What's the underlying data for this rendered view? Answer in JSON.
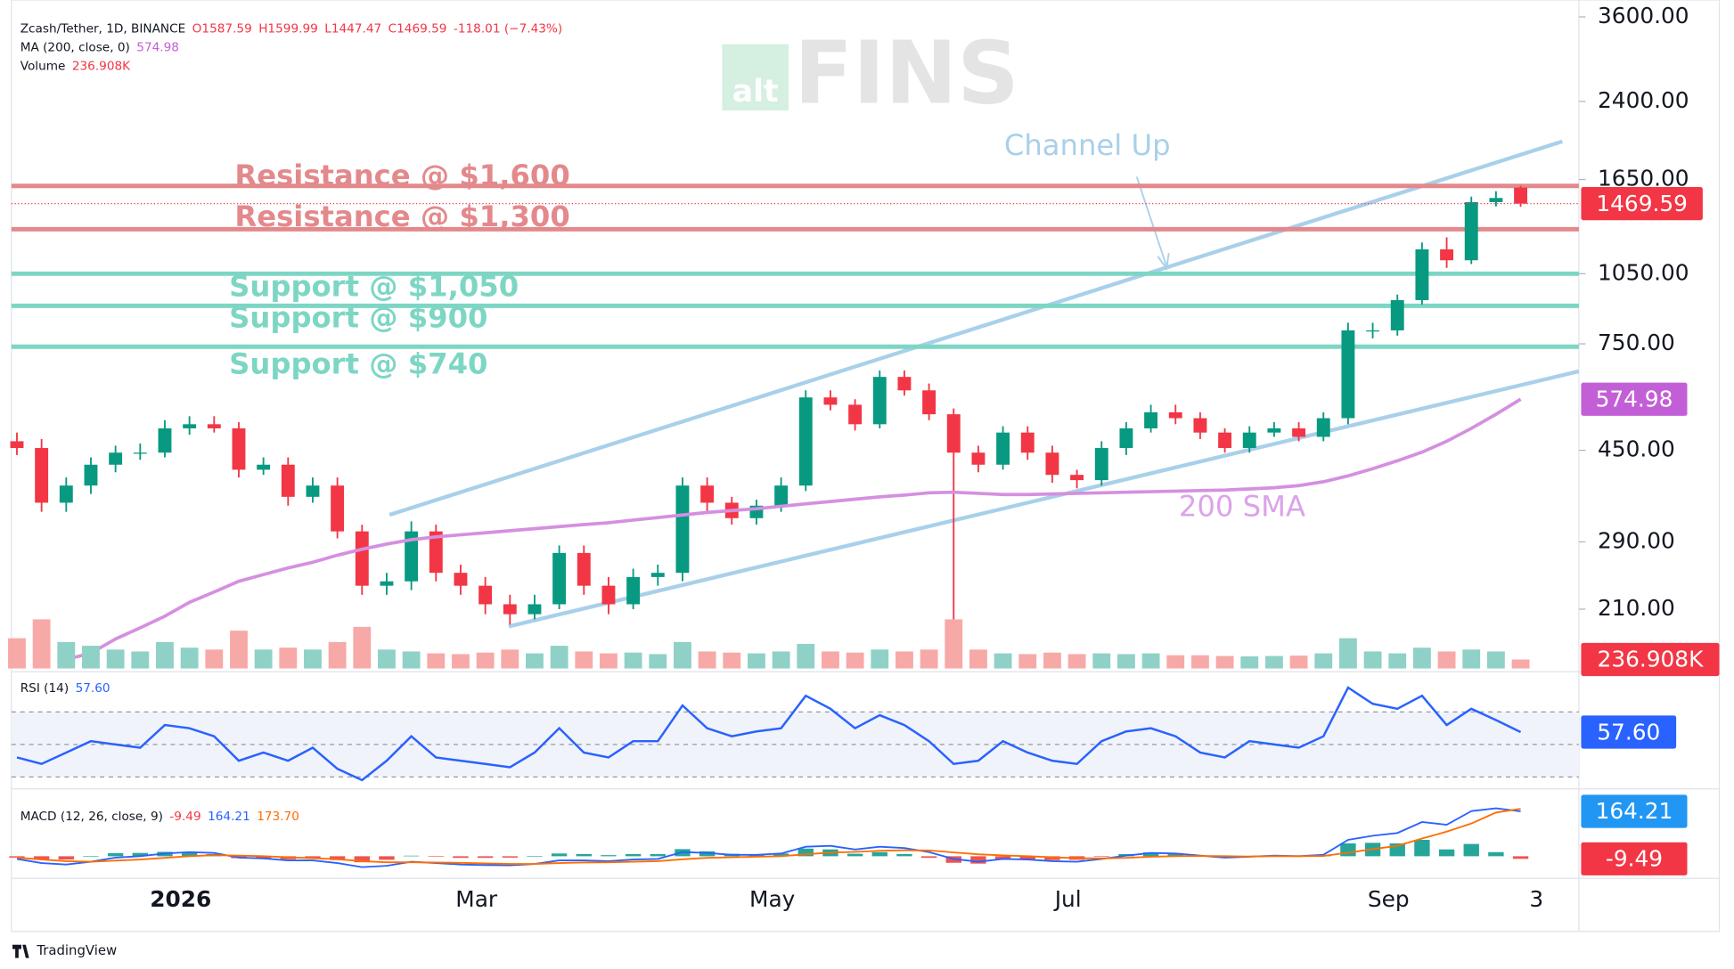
{
  "header": {
    "symbol": "Zcash/Tether, 1D, BINANCE",
    "quote": [
      "O1587.59",
      "H1599.99",
      "L1447.47",
      "C1469.59",
      "-118.01 (−7.43%)"
    ]
  },
  "watermark": {
    "prefix": "alt",
    "name": "FINS"
  },
  "footer": "TradingView",
  "chart_data": [
    {
      "type": "candlestick",
      "categories": [
        null,
        null,
        null,
        null,
        null,
        null,
        null,
        "2026",
        null,
        null,
        null,
        null,
        null,
        null,
        null,
        null,
        null,
        null,
        null,
        "Mar",
        null,
        null,
        null,
        null,
        null,
        null,
        null,
        null,
        null,
        null,
        null,
        "May",
        null,
        null,
        null,
        null,
        null,
        null,
        null,
        null,
        null,
        null,
        null,
        "Jul",
        null,
        null,
        null,
        null,
        null,
        null,
        null,
        null,
        null,
        null,
        null,
        null,
        "Sep",
        null,
        null,
        null,
        null,
        null,
        "3"
      ],
      "series": [
        {
          "up_color": "#089981",
          "down_color": "#f23645",
          "open": [
            470,
            455,
            350,
            380,
            420,
            445,
            445,
            500,
            510,
            500,
            410,
            420,
            360,
            380,
            305,
            235,
            240,
            305,
            250,
            235,
            215,
            205,
            215,
            275,
            235,
            215,
            245,
            250,
            380,
            350,
            325,
            345,
            380,
            580,
            560,
            510,
            640,
            600,
            535,
            445,
            420,
            490,
            445,
            400,
            390,
            455,
            500,
            540,
            525,
            490,
            455,
            490,
            500,
            480,
            525,
            800,
            800,
            925,
            1180,
            1120,
            1480,
            1587.59,
            null
          ],
          "high": [
            490,
            475,
            395,
            435,
            460,
            465,
            520,
            530,
            530,
            515,
            435,
            435,
            395,
            395,
            315,
            250,
            320,
            315,
            260,
            245,
            225,
            225,
            285,
            285,
            245,
            255,
            260,
            395,
            395,
            360,
            355,
            395,
            600,
            600,
            575,
            660,
            660,
            620,
            550,
            460,
            505,
            505,
            460,
            410,
            470,
            515,
            560,
            560,
            540,
            500,
            505,
            515,
            515,
            540,
            830,
            830,
            950,
            1220,
            1250,
            1520,
            1560,
            1599.99,
            null
          ],
          "low": [
            440,
            335,
            335,
            365,
            405,
            430,
            435,
            485,
            490,
            395,
            400,
            345,
            350,
            295,
            225,
            225,
            230,
            240,
            225,
            205,
            195,
            200,
            210,
            225,
            205,
            210,
            235,
            240,
            335,
            315,
            315,
            335,
            370,
            545,
            495,
            500,
            585,
            520,
            160,
            405,
            410,
            430,
            385,
            375,
            380,
            440,
            490,
            510,
            475,
            445,
            445,
            480,
            470,
            470,
            510,
            770,
            780,
            905,
            1080,
            1100,
            1450,
            1447.47,
            null
          ],
          "close": [
            455,
            350,
            380,
            420,
            445,
            445,
            500,
            510,
            500,
            410,
            420,
            360,
            380,
            305,
            235,
            240,
            305,
            250,
            235,
            215,
            205,
            215,
            275,
            235,
            215,
            245,
            250,
            380,
            350,
            325,
            345,
            380,
            580,
            560,
            510,
            640,
            600,
            535,
            445,
            420,
            490,
            445,
            400,
            390,
            455,
            500,
            540,
            525,
            490,
            455,
            490,
            500,
            480,
            525,
            800,
            800,
            925,
            1180,
            1120,
            1480,
            1510,
            1469.59,
            null
          ]
        },
        {
          "name": "MA (200, close, 0)",
          "color": "#d58fe0",
          "values": [
            null,
            null,
            165,
            170,
            182,
            192,
            203,
            217,
            228,
            240,
            248,
            256,
            263,
            272,
            280,
            287,
            293,
            297,
            300,
            303,
            306,
            309,
            312,
            315,
            318,
            322,
            326,
            330,
            334,
            337,
            340,
            344,
            348,
            352,
            356,
            360,
            363,
            367,
            368,
            366,
            364,
            364,
            365,
            366,
            367,
            368,
            369,
            370,
            371,
            372,
            374,
            376,
            380,
            387,
            398,
            412,
            428,
            446,
            470,
            500,
            535,
            574.98,
            null
          ]
        }
      ],
      "log_scale": true,
      "ylim": [
        158,
        3904
      ],
      "yticks": [
        {
          "value": 210,
          "label": "210.00"
        },
        {
          "value": 290,
          "label": "290.00"
        },
        {
          "value": 450,
          "label": "450.00"
        },
        {
          "value": 750,
          "label": "750.00"
        },
        {
          "value": 1050,
          "label": "1050.00"
        },
        {
          "value": 1650,
          "label": "1650.00"
        },
        {
          "value": 2400,
          "label": "2400.00"
        },
        {
          "value": 3600,
          "label": "3600.00"
        }
      ],
      "levels": [
        {
          "label": "Resistance @ $1,600",
          "value": 1600,
          "color": "#e3898c"
        },
        {
          "label": "Resistance @ $1,300",
          "value": 1300,
          "color": "#e3898c"
        },
        {
          "label": "Support @ $1,050",
          "value": 1050,
          "color": "#7dd6c4"
        },
        {
          "label": "Support @ $900",
          "value": 900,
          "color": "#7dd6c4"
        },
        {
          "label": "Support @ $740",
          "value": 740,
          "color": "#7dd6c4"
        }
      ],
      "annotations": [
        "Channel Up",
        "200 SMA"
      ],
      "markers": [
        {
          "value": 1469.59,
          "label": "1469.59",
          "color": "#f23645"
        },
        {
          "value": 574.98,
          "label": "574.98",
          "color": "#c35fd6"
        }
      ]
    },
    {
      "type": "bar",
      "title": "Volume",
      "values": [
        800000,
        1300000,
        700000,
        600000,
        500000,
        450000,
        700000,
        550000,
        500000,
        1000000,
        500000,
        550000,
        500000,
        700000,
        1100000,
        500000,
        450000,
        400000,
        380000,
        420000,
        500000,
        400000,
        600000,
        450000,
        400000,
        420000,
        380000,
        700000,
        450000,
        420000,
        400000,
        450000,
        650000,
        450000,
        420000,
        500000,
        450000,
        500000,
        1300000,
        500000,
        400000,
        380000,
        420000,
        380000,
        400000,
        380000,
        400000,
        350000,
        350000,
        330000,
        320000,
        330000,
        340000,
        400000,
        800000,
        450000,
        400000,
        550000,
        450000,
        500000,
        450000,
        236908,
        null
      ],
      "ylim": [
        0,
        1900000
      ],
      "markers": [
        {
          "value": 236908,
          "label": "236.908K",
          "color": "#f23645"
        }
      ]
    },
    {
      "type": "line",
      "title": "RSI (14)",
      "color": "#2962ff",
      "values": [
        42,
        38,
        45,
        52,
        50,
        48,
        62,
        60,
        55,
        40,
        45,
        40,
        48,
        35,
        28,
        40,
        55,
        42,
        40,
        38,
        36,
        45,
        60,
        45,
        42,
        52,
        52,
        74,
        60,
        55,
        58,
        60,
        80,
        72,
        60,
        68,
        62,
        52,
        38,
        40,
        52,
        45,
        40,
        38,
        52,
        58,
        60,
        55,
        45,
        42,
        52,
        50,
        48,
        55,
        85,
        75,
        72,
        80,
        62,
        72,
        65,
        57.6,
        null
      ],
      "ylim": [
        24,
        90
      ],
      "levels": [
        70,
        50,
        30
      ],
      "markers": [
        {
          "value": 57.6,
          "label": "57.60",
          "color": "#2962ff"
        }
      ]
    },
    {
      "type": "macd",
      "title": "MACD (12, 26, close, 9)",
      "series": [
        {
          "color": "#26a69a",
          "neg_color": "#ef5350",
          "values": [
            -5,
            -13,
            -12,
            0,
            11,
            12,
            16,
            15,
            8,
            -7,
            -8,
            -11,
            -8,
            -14,
            -22,
            -13,
            2,
            -2,
            -6,
            -6,
            -5,
            0,
            10,
            8,
            4,
            8,
            8,
            26,
            18,
            9,
            7,
            10,
            28,
            25,
            9,
            15,
            8,
            -6,
            -24,
            -27,
            -13,
            -12,
            -14,
            -13,
            -2,
            8,
            14,
            10,
            1,
            -5,
            -1,
            2,
            0,
            4,
            47,
            49,
            47,
            60,
            25,
            45,
            15,
            -9.49,
            null
          ]
        },
        {
          "color": "#2962ff",
          "values": [
            -10,
            -25,
            -30,
            -20,
            -5,
            0,
            10,
            15,
            12,
            -5,
            -8,
            -15,
            -15,
            -25,
            -40,
            -35,
            -20,
            -25,
            -30,
            -32,
            -33,
            -28,
            -15,
            -15,
            -18,
            -12,
            -10,
            15,
            12,
            5,
            5,
            10,
            35,
            38,
            25,
            35,
            30,
            15,
            -10,
            -20,
            -10,
            -12,
            -18,
            -20,
            -10,
            2,
            12,
            10,
            2,
            -5,
            -2,
            2,
            0,
            5,
            60,
            75,
            85,
            125,
            115,
            165,
            175,
            164.21,
            null
          ]
        },
        {
          "color": "#ff6d00",
          "values": [
            -5,
            -12,
            -18,
            -20,
            -16,
            -12,
            -6,
            0,
            4,
            2,
            0,
            -4,
            -7,
            -11,
            -18,
            -22,
            -22,
            -23,
            -24,
            -26,
            -28,
            -28,
            -25,
            -23,
            -22,
            -20,
            -18,
            -11,
            -6,
            -4,
            -2,
            0,
            7,
            13,
            16,
            20,
            22,
            21,
            14,
            7,
            3,
            0,
            -4,
            -7,
            -8,
            -6,
            -2,
            0,
            1,
            0,
            -1,
            0,
            0,
            1,
            13,
            26,
            38,
            65,
            90,
            120,
            160,
            173.7,
            null
          ]
        }
      ],
      "ylim": [
        -73,
        214
      ],
      "legend_values": [
        "-9.49",
        "164.21",
        "173.70"
      ],
      "markers": [
        {
          "value": 164.21,
          "label": "164.21",
          "color": "#2196f3"
        },
        {
          "value": -9.49,
          "label": "-9.49",
          "color": "#f23645"
        }
      ]
    }
  ]
}
